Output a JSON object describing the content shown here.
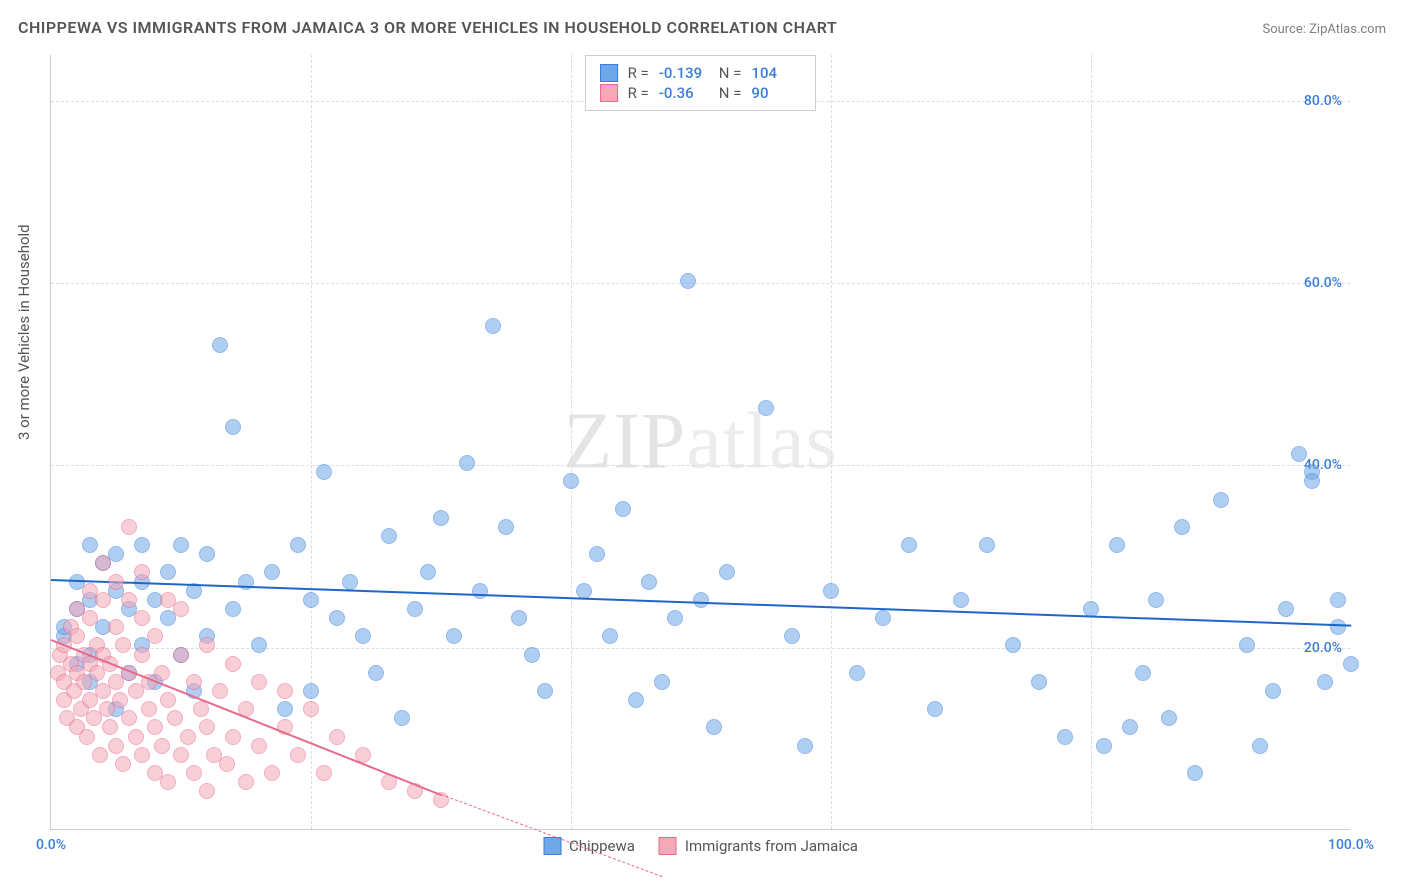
{
  "title": "CHIPPEWA VS IMMIGRANTS FROM JAMAICA 3 OR MORE VEHICLES IN HOUSEHOLD CORRELATION CHART",
  "source": "Source: ZipAtlas.com",
  "watermark": "ZIPatlas",
  "y_axis_label": "3 or more Vehicles in Household",
  "chart": {
    "type": "scatter",
    "xlim": [
      0,
      100
    ],
    "ylim": [
      0,
      85
    ],
    "x_ticks": [
      {
        "pos": 0,
        "label": "0.0%",
        "label_show": true
      },
      {
        "pos": 20,
        "label_show": false
      },
      {
        "pos": 40,
        "label_show": false
      },
      {
        "pos": 60,
        "label_show": false
      },
      {
        "pos": 80,
        "label_show": false
      },
      {
        "pos": 100,
        "label": "100.0%",
        "label_show": true
      }
    ],
    "y_ticks": [
      {
        "pos": 20,
        "label": "20.0%"
      },
      {
        "pos": 40,
        "label": "40.0%"
      },
      {
        "pos": 60,
        "label": "60.0%"
      },
      {
        "pos": 80,
        "label": "80.0%"
      }
    ],
    "grid_color": "#dddddd",
    "tick_label_color": "#3b7dd8",
    "background_color": "#ffffff",
    "point_radius": 8,
    "point_opacity": 0.55,
    "series": [
      {
        "name": "Chippewa",
        "color": "#6fa8e8",
        "border_color": "#3b7dd8",
        "r": -0.139,
        "n": 104,
        "trend": {
          "x1": 0,
          "y1": 27.5,
          "x2": 100,
          "y2": 22.5,
          "color": "#1f66c9",
          "width": 2
        },
        "points": [
          [
            1,
            23
          ],
          [
            1,
            24
          ],
          [
            2,
            20
          ],
          [
            2,
            26
          ],
          [
            2,
            29
          ],
          [
            3,
            18
          ],
          [
            3,
            21
          ],
          [
            3,
            27
          ],
          [
            3,
            33
          ],
          [
            4,
            24
          ],
          [
            4,
            31
          ],
          [
            5,
            15
          ],
          [
            5,
            28
          ],
          [
            5,
            32
          ],
          [
            6,
            19
          ],
          [
            6,
            26
          ],
          [
            7,
            22
          ],
          [
            7,
            29
          ],
          [
            7,
            33
          ],
          [
            8,
            18
          ],
          [
            8,
            27
          ],
          [
            9,
            25
          ],
          [
            9,
            30
          ],
          [
            10,
            21
          ],
          [
            10,
            33
          ],
          [
            11,
            17
          ],
          [
            11,
            28
          ],
          [
            12,
            23
          ],
          [
            12,
            32
          ],
          [
            13,
            55
          ],
          [
            14,
            26
          ],
          [
            14,
            46
          ],
          [
            15,
            29
          ],
          [
            16,
            22
          ],
          [
            17,
            30
          ],
          [
            18,
            15
          ],
          [
            19,
            33
          ],
          [
            20,
            27
          ],
          [
            20,
            17
          ],
          [
            21,
            41
          ],
          [
            22,
            25
          ],
          [
            23,
            29
          ],
          [
            24,
            23
          ],
          [
            25,
            19
          ],
          [
            26,
            34
          ],
          [
            27,
            14
          ],
          [
            28,
            26
          ],
          [
            29,
            30
          ],
          [
            30,
            36
          ],
          [
            31,
            23
          ],
          [
            32,
            42
          ],
          [
            33,
            28
          ],
          [
            34,
            57
          ],
          [
            35,
            35
          ],
          [
            36,
            25
          ],
          [
            37,
            21
          ],
          [
            38,
            17
          ],
          [
            40,
            40
          ],
          [
            41,
            28
          ],
          [
            42,
            32
          ],
          [
            43,
            23
          ],
          [
            44,
            37
          ],
          [
            45,
            16
          ],
          [
            46,
            29
          ],
          [
            47,
            18
          ],
          [
            48,
            25
          ],
          [
            49,
            62
          ],
          [
            50,
            27
          ],
          [
            51,
            13
          ],
          [
            52,
            30
          ],
          [
            55,
            48
          ],
          [
            57,
            23
          ],
          [
            58,
            11
          ],
          [
            60,
            28
          ],
          [
            62,
            19
          ],
          [
            64,
            25
          ],
          [
            66,
            33
          ],
          [
            68,
            15
          ],
          [
            70,
            27
          ],
          [
            72,
            33
          ],
          [
            74,
            22
          ],
          [
            76,
            18
          ],
          [
            78,
            12
          ],
          [
            80,
            26
          ],
          [
            81,
            11
          ],
          [
            82,
            33
          ],
          [
            83,
            13
          ],
          [
            84,
            19
          ],
          [
            85,
            27
          ],
          [
            86,
            14
          ],
          [
            87,
            35
          ],
          [
            88,
            8
          ],
          [
            90,
            38
          ],
          [
            92,
            22
          ],
          [
            93,
            11
          ],
          [
            94,
            17
          ],
          [
            95,
            26
          ],
          [
            96,
            43
          ],
          [
            97,
            41
          ],
          [
            97,
            40
          ],
          [
            98,
            18
          ],
          [
            99,
            24
          ],
          [
            99,
            27
          ],
          [
            100,
            20
          ]
        ]
      },
      {
        "name": "Immigrants from Jamaica",
        "color": "#f4a8b8",
        "border_color": "#e86a8a",
        "r": -0.36,
        "n": 90,
        "trend": {
          "x1": 0,
          "y1": 21,
          "x2": 30,
          "y2": 4,
          "color": "#e86a8a",
          "width": 2,
          "dash_extend": {
            "x1": 30,
            "y1": 4,
            "x2": 47,
            "y2": -5
          }
        },
        "points": [
          [
            0.5,
            19
          ],
          [
            0.7,
            21
          ],
          [
            1,
            16
          ],
          [
            1,
            18
          ],
          [
            1,
            22
          ],
          [
            1.2,
            14
          ],
          [
            1.5,
            20
          ],
          [
            1.5,
            24
          ],
          [
            1.8,
            17
          ],
          [
            2,
            13
          ],
          [
            2,
            19
          ],
          [
            2,
            23
          ],
          [
            2,
            26
          ],
          [
            2.3,
            15
          ],
          [
            2.5,
            18
          ],
          [
            2.5,
            21
          ],
          [
            2.8,
            12
          ],
          [
            3,
            16
          ],
          [
            3,
            20
          ],
          [
            3,
            25
          ],
          [
            3,
            28
          ],
          [
            3.3,
            14
          ],
          [
            3.5,
            19
          ],
          [
            3.5,
            22
          ],
          [
            3.8,
            10
          ],
          [
            4,
            17
          ],
          [
            4,
            21
          ],
          [
            4,
            27
          ],
          [
            4,
            31
          ],
          [
            4.3,
            15
          ],
          [
            4.5,
            13
          ],
          [
            4.5,
            20
          ],
          [
            5,
            11
          ],
          [
            5,
            18
          ],
          [
            5,
            24
          ],
          [
            5,
            29
          ],
          [
            5.3,
            16
          ],
          [
            5.5,
            9
          ],
          [
            5.5,
            22
          ],
          [
            6,
            14
          ],
          [
            6,
            19
          ],
          [
            6,
            27
          ],
          [
            6,
            35
          ],
          [
            6.5,
            12
          ],
          [
            6.5,
            17
          ],
          [
            7,
            10
          ],
          [
            7,
            21
          ],
          [
            7,
            25
          ],
          [
            7,
            30
          ],
          [
            7.5,
            15
          ],
          [
            7.5,
            18
          ],
          [
            8,
            8
          ],
          [
            8,
            13
          ],
          [
            8,
            23
          ],
          [
            8.5,
            11
          ],
          [
            8.5,
            19
          ],
          [
            9,
            7
          ],
          [
            9,
            16
          ],
          [
            9,
            27
          ],
          [
            9.5,
            14
          ],
          [
            10,
            10
          ],
          [
            10,
            21
          ],
          [
            10,
            26
          ],
          [
            10.5,
            12
          ],
          [
            11,
            8
          ],
          [
            11,
            18
          ],
          [
            11.5,
            15
          ],
          [
            12,
            6
          ],
          [
            12,
            13
          ],
          [
            12,
            22
          ],
          [
            12.5,
            10
          ],
          [
            13,
            17
          ],
          [
            13.5,
            9
          ],
          [
            14,
            12
          ],
          [
            14,
            20
          ],
          [
            15,
            7
          ],
          [
            15,
            15
          ],
          [
            16,
            11
          ],
          [
            16,
            18
          ],
          [
            17,
            8
          ],
          [
            18,
            13
          ],
          [
            18,
            17
          ],
          [
            19,
            10
          ],
          [
            20,
            15
          ],
          [
            21,
            8
          ],
          [
            22,
            12
          ],
          [
            24,
            10
          ],
          [
            26,
            7
          ],
          [
            28,
            6
          ],
          [
            30,
            5
          ]
        ]
      }
    ]
  },
  "legend_top": {
    "r_label": "R =",
    "n_label": "N ="
  },
  "legend_bottom": {
    "items": [
      "Chippewa",
      "Immigrants from Jamaica"
    ]
  }
}
